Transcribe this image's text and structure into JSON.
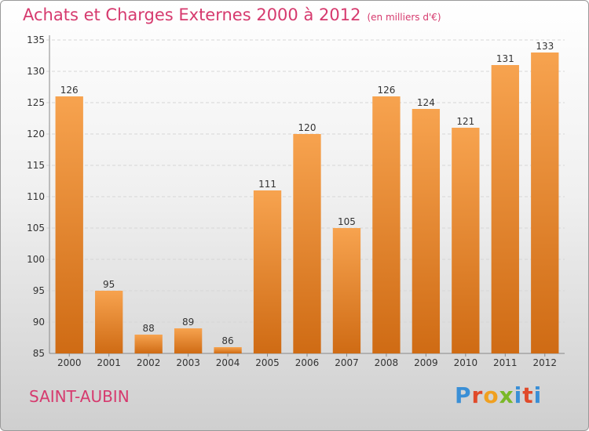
{
  "header": {
    "title": "Achats et Charges Externes 2000 à 2012",
    "subtitle": "(en milliers d'€)"
  },
  "footer": {
    "commune": "SAINT-AUBIN",
    "logo_text": "Proxiti",
    "logo_colors": [
      "#3a8fd6",
      "#e04a2a",
      "#f0a020",
      "#7ab828",
      "#3a8fd6",
      "#e04a2a",
      "#3a8fd6"
    ]
  },
  "colors": {
    "bar_top": "#f7a34f",
    "bar_bottom": "#cf6b14",
    "accent": "#d63a6e"
  },
  "chart_data": {
    "type": "bar",
    "title": "Achats et Charges Externes 2000 à 2012",
    "subtitle": "(en milliers d'€)",
    "categories": [
      "2000",
      "2001",
      "2002",
      "2003",
      "2004",
      "2005",
      "2006",
      "2007",
      "2008",
      "2009",
      "2010",
      "2011",
      "2012"
    ],
    "values": [
      126,
      95,
      88,
      89,
      86,
      111,
      120,
      105,
      126,
      124,
      121,
      131,
      133
    ],
    "data_labels": [
      "126",
      "95",
      "88",
      "89",
      "86",
      "111",
      "120",
      "105",
      "126",
      "124",
      "121",
      "131",
      "133"
    ],
    "ylim": [
      85,
      135
    ],
    "yticks": [
      85,
      90,
      95,
      100,
      105,
      110,
      115,
      120,
      125,
      130,
      135
    ],
    "ytick_labels": [
      "85",
      "90",
      "95",
      "100",
      "105",
      "110",
      "115",
      "120",
      "125",
      "130",
      "135"
    ],
    "xlabel": "",
    "ylabel": "",
    "grid": true
  }
}
